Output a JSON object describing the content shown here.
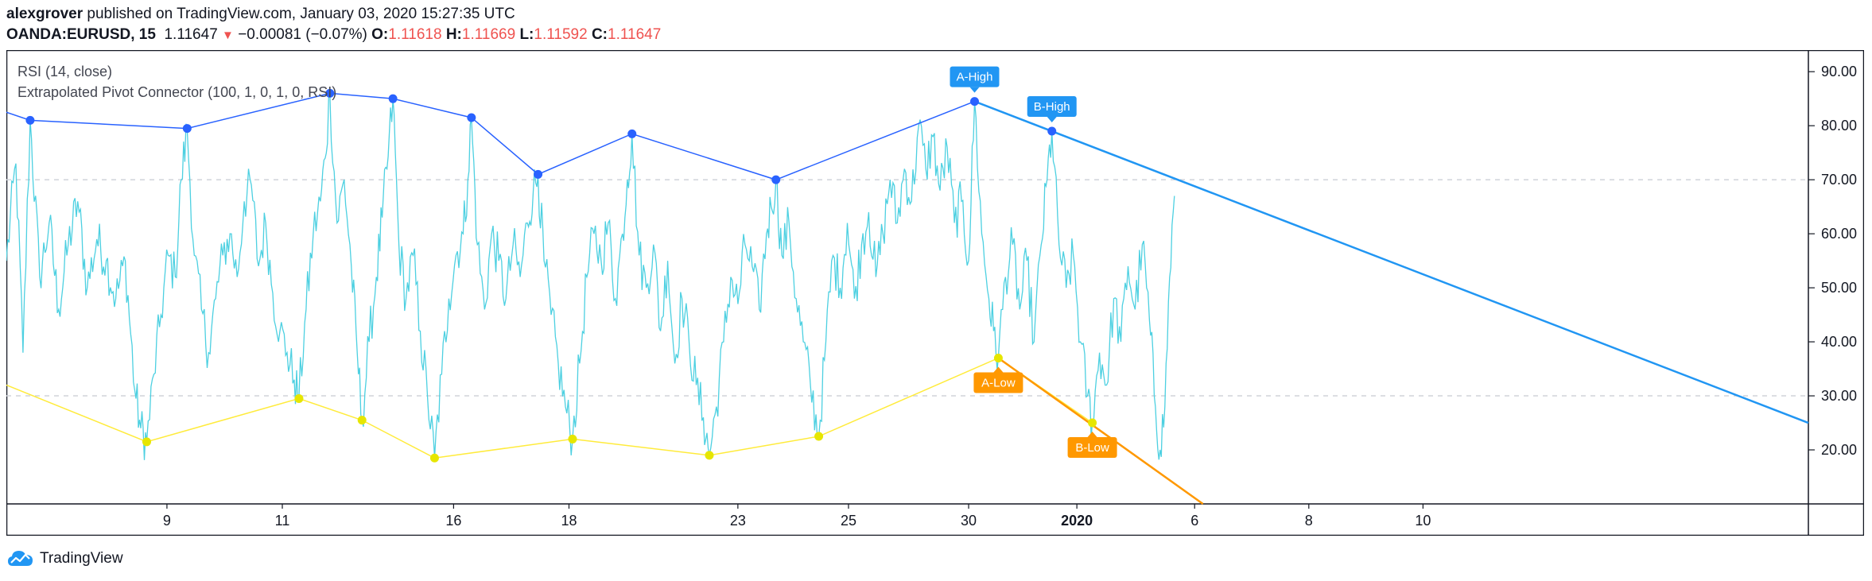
{
  "header": {
    "author": "alexgrover",
    "published_text": "published on TradingView.com, January 03, 2020 15:27:35 UTC",
    "symbol": "OANDA:EURUSD, 15",
    "price": "1.11647",
    "change": "−0.00081 (−0.07%)",
    "open_label": "O:",
    "open": "1.11618",
    "high_label": "H:",
    "high": "1.11669",
    "low_label": "L:",
    "low": "1.11592",
    "close_label": "C:",
    "close": "1.11647"
  },
  "legend": {
    "rsi": "RSI (14, close)",
    "epc": "Extrapolated Pivot Connector (100, 1, 0, 1, 0, RSI)"
  },
  "footer": {
    "brand": "TradingView"
  },
  "colors": {
    "rsi_line": "#4dd0e1",
    "high_line": "#2962ff",
    "high_extrap": "#2196f3",
    "low_line": "#ffeb3b",
    "low_extrap": "#ff9800",
    "high_pivot_dot": "#2962ff",
    "low_pivot_dot": "#e6e600",
    "grid_dash": "#d0d3d9",
    "axis_text": "#131722"
  },
  "chart_data": {
    "type": "line",
    "title": "RSI (14, close)",
    "ylim": [
      10,
      94
    ],
    "y_ticks": [
      "90.00",
      "80.00",
      "70.00",
      "60.00",
      "50.00",
      "40.00",
      "30.00",
      "20.00"
    ],
    "y_tick_values": [
      90,
      80,
      70,
      60,
      50,
      40,
      30,
      20
    ],
    "reference_levels": [
      70,
      30
    ],
    "x_range": [
      0,
      1515
    ],
    "x_ticks": [
      {
        "label": "9",
        "x": 135
      },
      {
        "label": "11",
        "x": 232
      },
      {
        "label": "16",
        "x": 376
      },
      {
        "label": "18",
        "x": 473
      },
      {
        "label": "23",
        "x": 615
      },
      {
        "label": "25",
        "x": 708
      },
      {
        "label": "30",
        "x": 809
      },
      {
        "label": "2020",
        "x": 900,
        "bold": true
      },
      {
        "label": "6",
        "x": 999
      },
      {
        "label": "8",
        "x": 1095
      },
      {
        "label": "10",
        "x": 1191
      }
    ],
    "high_pivots": [
      {
        "x": 20,
        "y": 81
      },
      {
        "x": 152,
        "y": 79.5
      },
      {
        "x": 272,
        "y": 86
      },
      {
        "x": 325,
        "y": 85
      },
      {
        "x": 391,
        "y": 81.5
      },
      {
        "x": 447,
        "y": 71
      },
      {
        "x": 526,
        "y": 78.5
      },
      {
        "x": 647,
        "y": 70
      },
      {
        "x": 814,
        "y": 84.5
      },
      {
        "x": 879,
        "y": 79
      }
    ],
    "low_pivots": [
      {
        "x": 118,
        "y": 21.5
      },
      {
        "x": 246,
        "y": 29.5
      },
      {
        "x": 299,
        "y": 25.5
      },
      {
        "x": 360,
        "y": 18.5
      },
      {
        "x": 476,
        "y": 22
      },
      {
        "x": 591,
        "y": 19
      },
      {
        "x": 683,
        "y": 22.5
      },
      {
        "x": 834,
        "y": 37
      },
      {
        "x": 913,
        "y": 25
      }
    ],
    "high_extrapolation": {
      "from": {
        "x": 814,
        "y": 84.5
      },
      "to": {
        "x": 1515,
        "y": 25
      }
    },
    "low_extrapolation": {
      "from": {
        "x": 834,
        "y": 37
      },
      "to": {
        "x": 1006,
        "y": 10
      }
    },
    "pivot_labels": [
      {
        "text": "A-High",
        "x": 814,
        "y": 84.5,
        "position": "above",
        "color": "#2196f3"
      },
      {
        "text": "B-High",
        "x": 879,
        "y": 79,
        "position": "above",
        "color": "#2196f3"
      },
      {
        "text": "A-Low",
        "x": 834,
        "y": 37,
        "position": "below",
        "color": "#ff9800"
      },
      {
        "text": "B-Low",
        "x": 913,
        "y": 25,
        "position": "below",
        "color": "#ff9800"
      }
    ],
    "rsi_anchors": [
      [
        0,
        55
      ],
      [
        8,
        73
      ],
      [
        14,
        38
      ],
      [
        20,
        81
      ],
      [
        28,
        52
      ],
      [
        36,
        62
      ],
      [
        44,
        46
      ],
      [
        52,
        58
      ],
      [
        60,
        66
      ],
      [
        68,
        50
      ],
      [
        76,
        59
      ],
      [
        84,
        55
      ],
      [
        92,
        48
      ],
      [
        100,
        55
      ],
      [
        108,
        31
      ],
      [
        113,
        24
      ],
      [
        118,
        21.5
      ],
      [
        124,
        34
      ],
      [
        130,
        45
      ],
      [
        136,
        56
      ],
      [
        142,
        52
      ],
      [
        147,
        70
      ],
      [
        152,
        79.5
      ],
      [
        158,
        56
      ],
      [
        164,
        46
      ],
      [
        170,
        38
      ],
      [
        176,
        48
      ],
      [
        182,
        56
      ],
      [
        188,
        60
      ],
      [
        194,
        52
      ],
      [
        200,
        66
      ],
      [
        206,
        69
      ],
      [
        212,
        54
      ],
      [
        218,
        62
      ],
      [
        224,
        49
      ],
      [
        230,
        42
      ],
      [
        236,
        38
      ],
      [
        242,
        33
      ],
      [
        246,
        29.5
      ],
      [
        252,
        46
      ],
      [
        258,
        60
      ],
      [
        264,
        66
      ],
      [
        268,
        74
      ],
      [
        272,
        86
      ],
      [
        278,
        62
      ],
      [
        284,
        70
      ],
      [
        290,
        54
      ],
      [
        295,
        38
      ],
      [
        299,
        25.5
      ],
      [
        305,
        40
      ],
      [
        311,
        52
      ],
      [
        316,
        63
      ],
      [
        320,
        72
      ],
      [
        325,
        85
      ],
      [
        330,
        58
      ],
      [
        336,
        48
      ],
      [
        342,
        56
      ],
      [
        348,
        42
      ],
      [
        354,
        30
      ],
      [
        360,
        18.5
      ],
      [
        366,
        34
      ],
      [
        372,
        48
      ],
      [
        378,
        56
      ],
      [
        384,
        60
      ],
      [
        388,
        70
      ],
      [
        391,
        81.5
      ],
      [
        396,
        58
      ],
      [
        402,
        46
      ],
      [
        408,
        60
      ],
      [
        414,
        55
      ],
      [
        420,
        48
      ],
      [
        426,
        58
      ],
      [
        432,
        52
      ],
      [
        438,
        62
      ],
      [
        443,
        68
      ],
      [
        447,
        71
      ],
      [
        452,
        55
      ],
      [
        458,
        45
      ],
      [
        464,
        36
      ],
      [
        470,
        28
      ],
      [
        476,
        22
      ],
      [
        482,
        36
      ],
      [
        488,
        52
      ],
      [
        494,
        60
      ],
      [
        500,
        55
      ],
      [
        506,
        62
      ],
      [
        512,
        48
      ],
      [
        518,
        60
      ],
      [
        522,
        70
      ],
      [
        526,
        78.5
      ],
      [
        532,
        56
      ],
      [
        538,
        50
      ],
      [
        544,
        58
      ],
      [
        550,
        42
      ],
      [
        556,
        55
      ],
      [
        562,
        36
      ],
      [
        568,
        48
      ],
      [
        574,
        40
      ],
      [
        580,
        32
      ],
      [
        586,
        26
      ],
      [
        591,
        19
      ],
      [
        597,
        28
      ],
      [
        603,
        40
      ],
      [
        609,
        52
      ],
      [
        615,
        47
      ],
      [
        621,
        58
      ],
      [
        627,
        54
      ],
      [
        633,
        46
      ],
      [
        639,
        60
      ],
      [
        643,
        65
      ],
      [
        647,
        70
      ],
      [
        652,
        56
      ],
      [
        658,
        62
      ],
      [
        664,
        48
      ],
      [
        670,
        40
      ],
      [
        676,
        32
      ],
      [
        683,
        22.5
      ],
      [
        689,
        40
      ],
      [
        695,
        56
      ],
      [
        701,
        50
      ],
      [
        707,
        62
      ],
      [
        713,
        48
      ],
      [
        719,
        58
      ],
      [
        725,
        64
      ],
      [
        731,
        52
      ],
      [
        737,
        60
      ],
      [
        743,
        70
      ],
      [
        749,
        62
      ],
      [
        755,
        72
      ],
      [
        761,
        66
      ],
      [
        767,
        80
      ],
      [
        773,
        72
      ],
      [
        779,
        78
      ],
      [
        785,
        68
      ],
      [
        791,
        76
      ],
      [
        797,
        62
      ],
      [
        803,
        66
      ],
      [
        809,
        55
      ],
      [
        814,
        84.5
      ],
      [
        820,
        60
      ],
      [
        826,
        48
      ],
      [
        830,
        42
      ],
      [
        834,
        37
      ],
      [
        840,
        52
      ],
      [
        846,
        58
      ],
      [
        852,
        46
      ],
      [
        858,
        55
      ],
      [
        864,
        40
      ],
      [
        870,
        58
      ],
      [
        875,
        70
      ],
      [
        879,
        79
      ],
      [
        885,
        58
      ],
      [
        891,
        50
      ],
      [
        897,
        56
      ],
      [
        903,
        40
      ],
      [
        909,
        30
      ],
      [
        913,
        25
      ],
      [
        919,
        38
      ],
      [
        925,
        32
      ],
      [
        931,
        48
      ],
      [
        937,
        40
      ],
      [
        943,
        54
      ],
      [
        949,
        46
      ],
      [
        955,
        58
      ],
      [
        961,
        44
      ],
      [
        966,
        28
      ],
      [
        970,
        20
      ],
      [
        974,
        28
      ],
      [
        978,
        52
      ],
      [
        982,
        67
      ]
    ]
  }
}
